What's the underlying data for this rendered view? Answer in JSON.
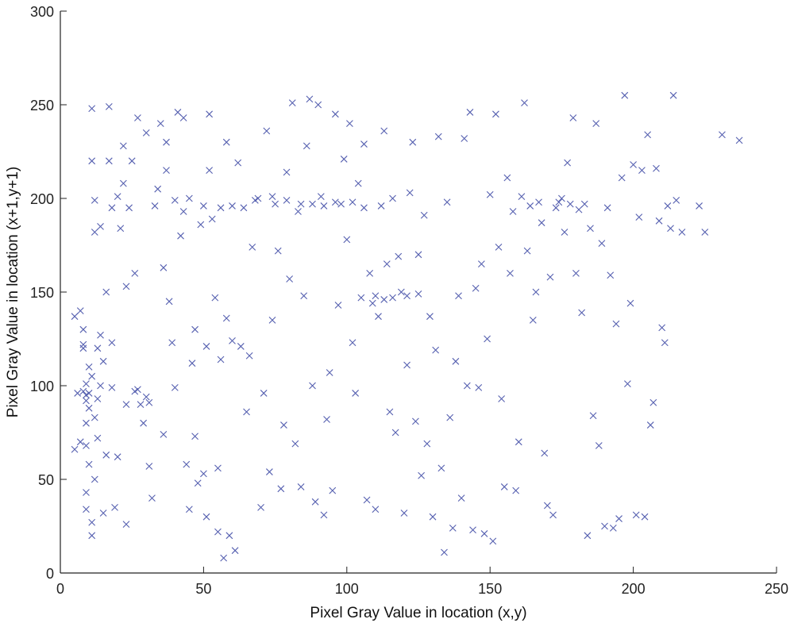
{
  "chart_data": {
    "type": "scatter",
    "title": "",
    "xlabel": "Pixel Gray Value in location (x,y)",
    "ylabel": "Pixel Gray Value in location (x+1,y+1)",
    "xlim": [
      0,
      250
    ],
    "ylim": [
      0,
      300
    ],
    "xticks": [
      0,
      50,
      100,
      150,
      200,
      250
    ],
    "yticks": [
      0,
      50,
      100,
      150,
      200,
      250,
      300
    ],
    "xtick_labels": [
      "0",
      "50",
      "100",
      "150",
      "200",
      "250"
    ],
    "ytick_labels": [
      "0",
      "50",
      "100",
      "150",
      "200",
      "250",
      "300"
    ],
    "grid": false,
    "legend": "none",
    "marker": "x",
    "marker_color": "#5660b0",
    "series": [
      {
        "points": [
          [
            5,
            137
          ],
          [
            5,
            66
          ],
          [
            6,
            96
          ],
          [
            7,
            70
          ],
          [
            7,
            140
          ],
          [
            8,
            97
          ],
          [
            8,
            122
          ],
          [
            8,
            120
          ],
          [
            8,
            130
          ],
          [
            9,
            101
          ],
          [
            9,
            95
          ],
          [
            9,
            92
          ],
          [
            9,
            80
          ],
          [
            9,
            68
          ],
          [
            9,
            43
          ],
          [
            9,
            34
          ],
          [
            10,
            88
          ],
          [
            10,
            110
          ],
          [
            10,
            58
          ],
          [
            11,
            20
          ],
          [
            11,
            27
          ],
          [
            11,
            248
          ],
          [
            11,
            220
          ],
          [
            12,
            199
          ],
          [
            12,
            182
          ],
          [
            12,
            50
          ],
          [
            13,
            120
          ],
          [
            13,
            93
          ],
          [
            13,
            72
          ],
          [
            14,
            185
          ],
          [
            14,
            100
          ],
          [
            15,
            113
          ],
          [
            15,
            32
          ],
          [
            16,
            150
          ],
          [
            16,
            63
          ],
          [
            17,
            249
          ],
          [
            17,
            220
          ],
          [
            18,
            123
          ],
          [
            18,
            195
          ],
          [
            19,
            35
          ],
          [
            20,
            62
          ],
          [
            20,
            201
          ],
          [
            21,
            184
          ],
          [
            22,
            228
          ],
          [
            22,
            208
          ],
          [
            23,
            90
          ],
          [
            23,
            26
          ],
          [
            24,
            195
          ],
          [
            25,
            220
          ],
          [
            26,
            160
          ],
          [
            26,
            97
          ],
          [
            27,
            243
          ],
          [
            28,
            90
          ],
          [
            29,
            80
          ],
          [
            30,
            235
          ],
          [
            30,
            94
          ],
          [
            31,
            57
          ],
          [
            32,
            40
          ],
          [
            33,
            196
          ],
          [
            34,
            205
          ],
          [
            35,
            240
          ],
          [
            36,
            74
          ],
          [
            36,
            163
          ],
          [
            37,
            215
          ],
          [
            38,
            145
          ],
          [
            39,
            123
          ],
          [
            40,
            99
          ],
          [
            40,
            199
          ],
          [
            41,
            246
          ],
          [
            42,
            180
          ],
          [
            43,
            243
          ],
          [
            44,
            58
          ],
          [
            45,
            200
          ],
          [
            45,
            34
          ],
          [
            46,
            112
          ],
          [
            47,
            130
          ],
          [
            48,
            48
          ],
          [
            49,
            186
          ],
          [
            50,
            53
          ],
          [
            50,
            196
          ],
          [
            51,
            121
          ],
          [
            51,
            30
          ],
          [
            52,
            245
          ],
          [
            53,
            189
          ],
          [
            54,
            147
          ],
          [
            55,
            22
          ],
          [
            55,
            56
          ],
          [
            56,
            114
          ],
          [
            57,
            8
          ],
          [
            58,
            230
          ],
          [
            58,
            136
          ],
          [
            59,
            20
          ],
          [
            60,
            124
          ],
          [
            61,
            12
          ],
          [
            62,
            219
          ],
          [
            64,
            195
          ],
          [
            65,
            86
          ],
          [
            66,
            116
          ],
          [
            67,
            174
          ],
          [
            68,
            199
          ],
          [
            70,
            35
          ],
          [
            71,
            96
          ],
          [
            72,
            236
          ],
          [
            73,
            54
          ],
          [
            74,
            135
          ],
          [
            75,
            197
          ],
          [
            76,
            172
          ],
          [
            77,
            45
          ],
          [
            78,
            79
          ],
          [
            79,
            214
          ],
          [
            80,
            157
          ],
          [
            81,
            251
          ],
          [
            82,
            69
          ],
          [
            83,
            193
          ],
          [
            84,
            46
          ],
          [
            85,
            148
          ],
          [
            86,
            228
          ],
          [
            87,
            253
          ],
          [
            88,
            100
          ],
          [
            89,
            38
          ],
          [
            90,
            250
          ],
          [
            91,
            201
          ],
          [
            92,
            31
          ],
          [
            93,
            82
          ],
          [
            94,
            107
          ],
          [
            95,
            44
          ],
          [
            96,
            245
          ],
          [
            97,
            143
          ],
          [
            98,
            197
          ],
          [
            99,
            221
          ],
          [
            100,
            178
          ],
          [
            101,
            240
          ],
          [
            102,
            123
          ],
          [
            103,
            96
          ],
          [
            104,
            208
          ],
          [
            105,
            147
          ],
          [
            106,
            229
          ],
          [
            107,
            39
          ],
          [
            108,
            160
          ],
          [
            109,
            144
          ],
          [
            110,
            34
          ],
          [
            111,
            137
          ],
          [
            112,
            196
          ],
          [
            113,
            236
          ],
          [
            114,
            165
          ],
          [
            115,
            86
          ],
          [
            116,
            200
          ],
          [
            117,
            75
          ],
          [
            118,
            169
          ],
          [
            119,
            150
          ],
          [
            120,
            32
          ],
          [
            121,
            111
          ],
          [
            122,
            203
          ],
          [
            123,
            230
          ],
          [
            124,
            81
          ],
          [
            125,
            170
          ],
          [
            126,
            52
          ],
          [
            127,
            191
          ],
          [
            128,
            69
          ],
          [
            129,
            137
          ],
          [
            130,
            30
          ],
          [
            131,
            119
          ],
          [
            132,
            233
          ],
          [
            133,
            56
          ],
          [
            134,
            11
          ],
          [
            135,
            198
          ],
          [
            136,
            83
          ],
          [
            137,
            24
          ],
          [
            138,
            113
          ],
          [
            139,
            148
          ],
          [
            140,
            40
          ],
          [
            141,
            232
          ],
          [
            142,
            100
          ],
          [
            143,
            246
          ],
          [
            144,
            23
          ],
          [
            145,
            152
          ],
          [
            146,
            99
          ],
          [
            147,
            165
          ],
          [
            148,
            21
          ],
          [
            149,
            125
          ],
          [
            150,
            202
          ],
          [
            151,
            17
          ],
          [
            152,
            245
          ],
          [
            153,
            174
          ],
          [
            154,
            93
          ],
          [
            155,
            46
          ],
          [
            156,
            211
          ],
          [
            157,
            160
          ],
          [
            158,
            193
          ],
          [
            159,
            44
          ],
          [
            160,
            70
          ],
          [
            161,
            201
          ],
          [
            162,
            251
          ],
          [
            163,
            172
          ],
          [
            164,
            196
          ],
          [
            165,
            135
          ],
          [
            166,
            150
          ],
          [
            167,
            198
          ],
          [
            168,
            187
          ],
          [
            169,
            64
          ],
          [
            170,
            36
          ],
          [
            171,
            158
          ],
          [
            172,
            31
          ],
          [
            173,
            195
          ],
          [
            174,
            198
          ],
          [
            175,
            200
          ],
          [
            176,
            182
          ],
          [
            177,
            219
          ],
          [
            178,
            197
          ],
          [
            179,
            243
          ],
          [
            180,
            160
          ],
          [
            181,
            194
          ],
          [
            182,
            139
          ],
          [
            183,
            197
          ],
          [
            184,
            20
          ],
          [
            185,
            184
          ],
          [
            186,
            84
          ],
          [
            187,
            240
          ],
          [
            188,
            68
          ],
          [
            189,
            176
          ],
          [
            190,
            25
          ],
          [
            191,
            195
          ],
          [
            192,
            159
          ],
          [
            193,
            24
          ],
          [
            194,
            133
          ],
          [
            195,
            29
          ],
          [
            196,
            211
          ],
          [
            197,
            255
          ],
          [
            198,
            101
          ],
          [
            199,
            144
          ],
          [
            200,
            218
          ],
          [
            201,
            31
          ],
          [
            202,
            190
          ],
          [
            203,
            215
          ],
          [
            204,
            30
          ],
          [
            205,
            234
          ],
          [
            206,
            79
          ],
          [
            207,
            91
          ],
          [
            208,
            216
          ],
          [
            209,
            188
          ],
          [
            210,
            131
          ],
          [
            211,
            123
          ],
          [
            212,
            196
          ],
          [
            213,
            184
          ],
          [
            214,
            255
          ],
          [
            215,
            199
          ],
          [
            217,
            182
          ],
          [
            223,
            196
          ],
          [
            225,
            182
          ],
          [
            231,
            234
          ],
          [
            237,
            231
          ],
          [
            11,
            105
          ],
          [
            14,
            127
          ],
          [
            10,
            96
          ],
          [
            12,
            83
          ],
          [
            18,
            99
          ],
          [
            23,
            153
          ],
          [
            27,
            98
          ],
          [
            31,
            91
          ],
          [
            37,
            230
          ],
          [
            43,
            193
          ],
          [
            47,
            73
          ],
          [
            52,
            215
          ],
          [
            56,
            195
          ],
          [
            60,
            196
          ],
          [
            63,
            121
          ],
          [
            69,
            200
          ],
          [
            74,
            201
          ],
          [
            79,
            199
          ],
          [
            84,
            197
          ],
          [
            88,
            197
          ],
          [
            92,
            196
          ],
          [
            96,
            198
          ],
          [
            102,
            198
          ],
          [
            106,
            195
          ],
          [
            110,
            148
          ],
          [
            113,
            146
          ],
          [
            116,
            147
          ],
          [
            121,
            148
          ],
          [
            125,
            149
          ]
        ]
      }
    ]
  }
}
